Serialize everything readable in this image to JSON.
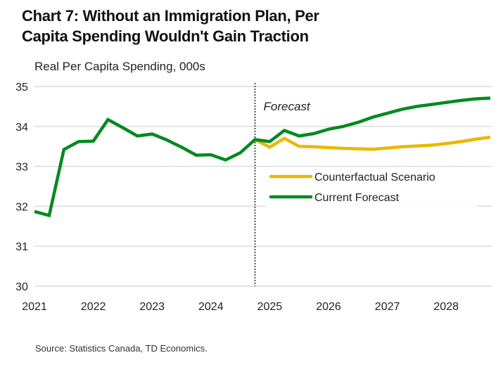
{
  "chart_data": {
    "type": "line",
    "title_line1": "Chart 7: Without an Immigration Plan, Per",
    "title_line2": "Capita Spending Wouldn't Gain Traction",
    "ylabel": "Real Per Capita Spending, 000s",
    "source": "Source: Statistics Canada, TD Economics.",
    "ylim": [
      30,
      35
    ],
    "yticks": [
      30,
      31,
      32,
      33,
      34,
      35
    ],
    "xticks": [
      "2021",
      "2022",
      "2023",
      "2024",
      "2025",
      "2026",
      "2027",
      "2028"
    ],
    "x_start": "2021Q1",
    "x_end": "2028Q4",
    "grid": true,
    "legend_placement": "center-right",
    "forecast_marker": {
      "label": "Forecast",
      "x_index": 15
    },
    "series": [
      {
        "name": "Counterfactual Scenario",
        "color": "#EBB700",
        "start_index": 15,
        "values": [
          33.67,
          33.48,
          33.7,
          33.5,
          33.49,
          33.47,
          33.45,
          33.44,
          33.43,
          33.46,
          33.49,
          33.51,
          33.53,
          33.57,
          33.62,
          33.68,
          33.73
        ]
      },
      {
        "name": "Current Forecast",
        "color": "#008A20",
        "start_index": 0,
        "values": [
          31.87,
          31.77,
          33.42,
          33.62,
          33.63,
          34.17,
          33.97,
          33.76,
          33.81,
          33.66,
          33.48,
          33.28,
          33.29,
          33.16,
          33.34,
          33.67,
          33.62,
          33.9,
          33.76,
          33.82,
          33.93,
          34.0,
          34.1,
          34.23,
          34.33,
          34.43,
          34.5,
          34.55,
          34.6,
          34.65,
          34.69,
          34.71
        ]
      }
    ]
  }
}
